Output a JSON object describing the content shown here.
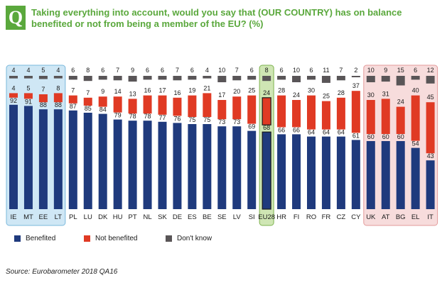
{
  "question_letter": "Q",
  "title": "Taking everything into account, would you say that (OUR COUNTRY) has on balance benefited or not from being a member of the EU? (%)",
  "source": "Source: Eurobarometer 2018 QA16",
  "colors": {
    "benefited": "#1f3a7d",
    "not_benefited": "#e03a24",
    "dont_know": "#595557",
    "group_high_bg": "#cfe7f5",
    "group_high_border": "#7ab8dc",
    "eu_bg": "#cfe6b4",
    "eu_border": "#7db24f",
    "group_low_bg": "#f7dcdc",
    "group_low_border": "#e39a9a",
    "accent": "#5aa83c"
  },
  "legend": [
    {
      "key": "benefited",
      "label": "Benefited"
    },
    {
      "key": "not_benefited",
      "label": "Not benefited"
    },
    {
      "key": "dont_know",
      "label": "Don't know"
    }
  ],
  "chart_data": {
    "type": "bar",
    "stacked": true,
    "categories": [
      "IE",
      "MT",
      "EE",
      "LT",
      "PL",
      "LU",
      "DK",
      "HU",
      "PT",
      "NL",
      "SK",
      "DE",
      "ES",
      "BE",
      "SE",
      "LV",
      "SI",
      "EU28",
      "HR",
      "FI",
      "RO",
      "FR",
      "CZ",
      "CY",
      "UK",
      "AT",
      "BG",
      "EL",
      "IT"
    ],
    "series": [
      {
        "name": "Benefited",
        "key": "benefited",
        "values": [
          92,
          91,
          88,
          88,
          87,
          85,
          84,
          79,
          78,
          78,
          77,
          76,
          75,
          75,
          73,
          73,
          69,
          68,
          66,
          66,
          64,
          64,
          64,
          61,
          60,
          60,
          60,
          54,
          43
        ]
      },
      {
        "name": "Not benefited",
        "key": "not_benefited",
        "values": [
          4,
          5,
          7,
          8,
          7,
          7,
          9,
          14,
          13,
          16,
          17,
          16,
          19,
          21,
          17,
          20,
          25,
          24,
          28,
          24,
          30,
          25,
          28,
          37,
          30,
          31,
          24,
          40,
          45
        ]
      },
      {
        "name": "Don't know",
        "key": "dont_know",
        "values": [
          4,
          4,
          5,
          4,
          6,
          8,
          6,
          7,
          9,
          6,
          6,
          7,
          6,
          4,
          10,
          7,
          6,
          8,
          6,
          10,
          6,
          11,
          7,
          2,
          10,
          9,
          15,
          6,
          12
        ]
      }
    ],
    "groups": [
      {
        "from": "IE",
        "to": "LT",
        "style": "high"
      },
      {
        "from": "EU28",
        "to": "EU28",
        "style": "eu"
      },
      {
        "from": "UK",
        "to": "IT",
        "style": "low"
      }
    ]
  }
}
